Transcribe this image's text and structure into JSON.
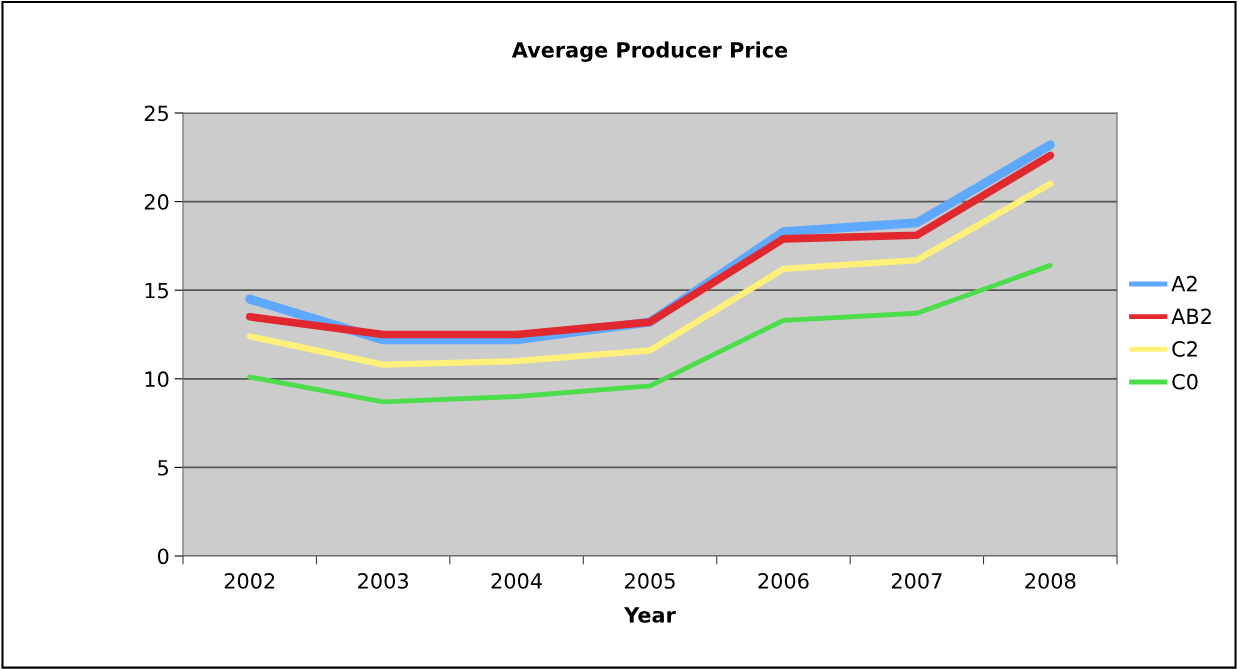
{
  "chart_data": {
    "type": "line",
    "title": "Average Producer Price",
    "xlabel": "Year",
    "categories": [
      "2002",
      "2003",
      "2004",
      "2005",
      "2006",
      "2007",
      "2008"
    ],
    "series": [
      {
        "name": "A2",
        "color": "#5fa8ff",
        "values": [
          14.5,
          12.2,
          12.2,
          13.2,
          18.3,
          18.8,
          23.2
        ]
      },
      {
        "name": "AB2",
        "color": "#e0282e",
        "values": [
          13.5,
          12.5,
          12.5,
          13.2,
          17.9,
          18.1,
          22.6
        ]
      },
      {
        "name": "C2",
        "color": "#fff07a",
        "values": [
          12.4,
          10.8,
          11.0,
          11.6,
          16.2,
          16.7,
          21.0
        ]
      },
      {
        "name": "C0",
        "color": "#4cdd4c",
        "values": [
          10.1,
          8.7,
          9.0,
          9.6,
          13.3,
          13.7,
          16.4
        ]
      }
    ],
    "ylim": [
      0,
      25
    ],
    "yticks": [
      0,
      5,
      10,
      15,
      20,
      25
    ],
    "grid": "y",
    "legend": "right",
    "marker": "none",
    "line_style": "solid"
  }
}
